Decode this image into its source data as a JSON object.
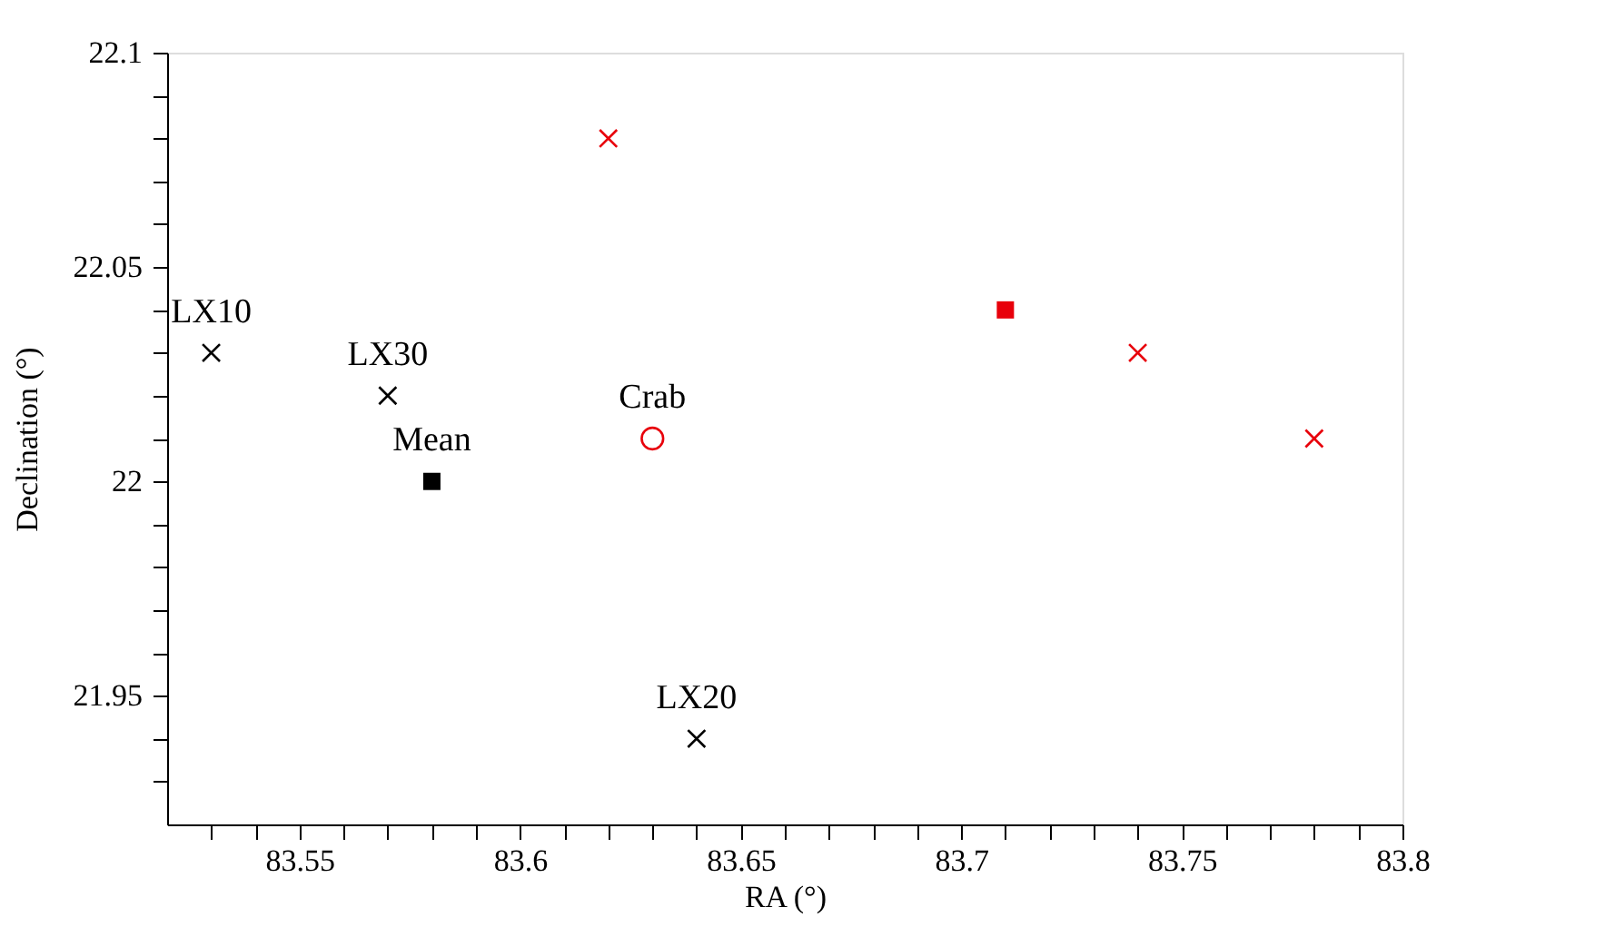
{
  "chart_data": {
    "type": "scatter",
    "xlabel": "RA (°)",
    "ylabel": "Declination (°)",
    "xlim": [
      83.52,
      83.8
    ],
    "ylim": [
      21.92,
      22.1
    ],
    "xticks": [
      {
        "value": 83.53,
        "label": null
      },
      {
        "value": 83.54,
        "label": null
      },
      83.55,
      {
        "value": 83.56,
        "label": null
      },
      {
        "value": 83.57,
        "label": null
      },
      {
        "value": 83.58,
        "label": null
      },
      {
        "value": 83.59,
        "label": null
      },
      83.6,
      {
        "value": 83.61,
        "label": null
      },
      {
        "value": 83.62,
        "label": null
      },
      {
        "value": 83.63,
        "label": null
      },
      {
        "value": 83.64,
        "label": null
      },
      83.65,
      {
        "value": 83.66,
        "label": null
      },
      {
        "value": 83.67,
        "label": null
      },
      {
        "value": 83.68,
        "label": null
      },
      {
        "value": 83.69,
        "label": null
      },
      83.7,
      {
        "value": 83.71,
        "label": null
      },
      {
        "value": 83.72,
        "label": null
      },
      {
        "value": 83.73,
        "label": null
      },
      {
        "value": 83.74,
        "label": null
      },
      83.75,
      {
        "value": 83.76,
        "label": null
      },
      {
        "value": 83.77,
        "label": null
      },
      {
        "value": 83.78,
        "label": null
      },
      {
        "value": 83.79,
        "label": null
      },
      83.8
    ],
    "yticks": [
      {
        "value": 21.93,
        "label": null
      },
      {
        "value": 21.94,
        "label": null
      },
      21.95,
      {
        "value": 21.96,
        "label": null
      },
      {
        "value": 21.97,
        "label": null
      },
      {
        "value": 21.98,
        "label": null
      },
      {
        "value": 21.99,
        "label": null
      },
      22,
      {
        "value": 22.01,
        "label": null
      },
      {
        "value": 22.02,
        "label": null
      },
      {
        "value": 22.03,
        "label": null
      },
      {
        "value": 22.04,
        "label": null
      },
      22.05,
      {
        "value": 22.06,
        "label": null
      },
      {
        "value": 22.07,
        "label": null
      },
      {
        "value": 22.08,
        "label": null
      },
      {
        "value": 22.09,
        "label": null
      },
      22.1
    ],
    "grid": false,
    "series": [
      {
        "color": "#000000",
        "marker": "cross",
        "x": [
          83.53,
          83.57,
          83.64
        ],
        "values": [
          22.03,
          22.02,
          21.94
        ]
      },
      {
        "color": "#000000",
        "marker": "square",
        "x": [
          83.58
        ],
        "values": [
          22.0
        ]
      },
      {
        "color": "#e8000b",
        "marker": "circle",
        "x": [
          83.63
        ],
        "values": [
          22.01
        ]
      },
      {
        "color": "#e8000b",
        "marker": "cross",
        "x": [
          83.62,
          83.74,
          83.78
        ],
        "values": [
          22.08,
          22.03,
          22.01
        ]
      },
      {
        "color": "#e8000b",
        "marker": "square",
        "x": [
          83.71
        ],
        "values": [
          22.04
        ]
      }
    ],
    "annotations": [
      {
        "text": "LX10",
        "x": 83.53,
        "y": 22.03
      },
      {
        "text": "LX30",
        "x": 83.57,
        "y": 22.02
      },
      {
        "text": "Mean",
        "x": 83.58,
        "y": 22.0
      },
      {
        "text": "Crab",
        "x": 83.63,
        "y": 22.01
      },
      {
        "text": "LX20",
        "x": 83.64,
        "y": 21.94
      }
    ]
  }
}
